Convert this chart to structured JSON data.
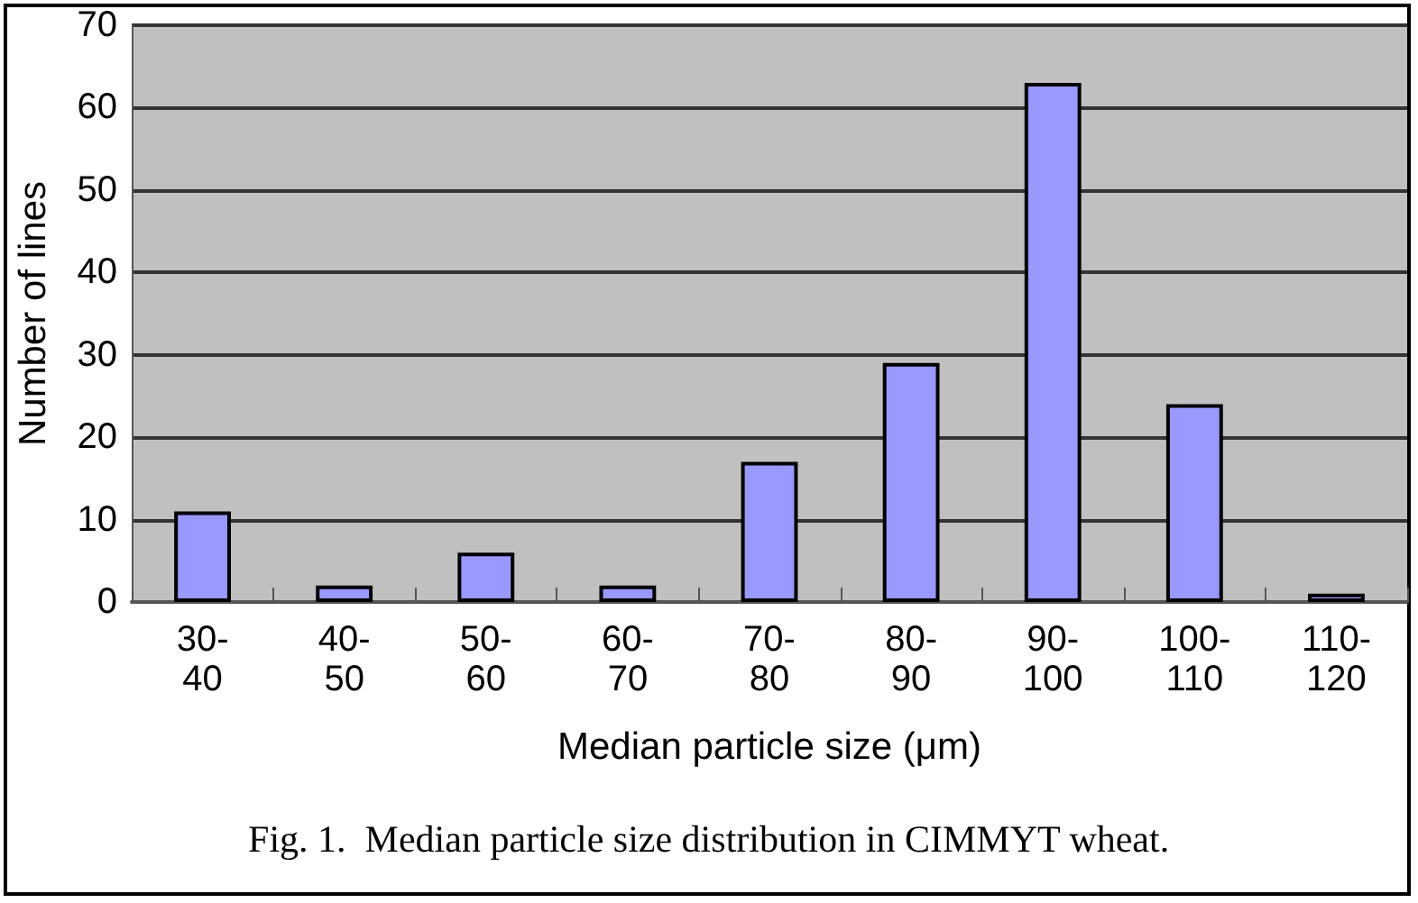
{
  "chart_data": {
    "type": "bar",
    "categories": [
      "30-40",
      "40-50",
      "50-60",
      "60-70",
      "70-80",
      "80-90",
      "90-100",
      "100-110",
      "110-120"
    ],
    "values": [
      11,
      2,
      6,
      2,
      17,
      29,
      63,
      24,
      1
    ],
    "color": "#9999ff",
    "xlabel": "Median particle size (μm)",
    "ylabel": "Number of lines",
    "annotations": [
      "Fig. 1.  Median particle size distribution in CIMMYT wheat."
    ],
    "ylim": [
      0,
      70
    ],
    "yticks": [
      0,
      10,
      20,
      30,
      40,
      50,
      60,
      70
    ],
    "grid": "y"
  }
}
